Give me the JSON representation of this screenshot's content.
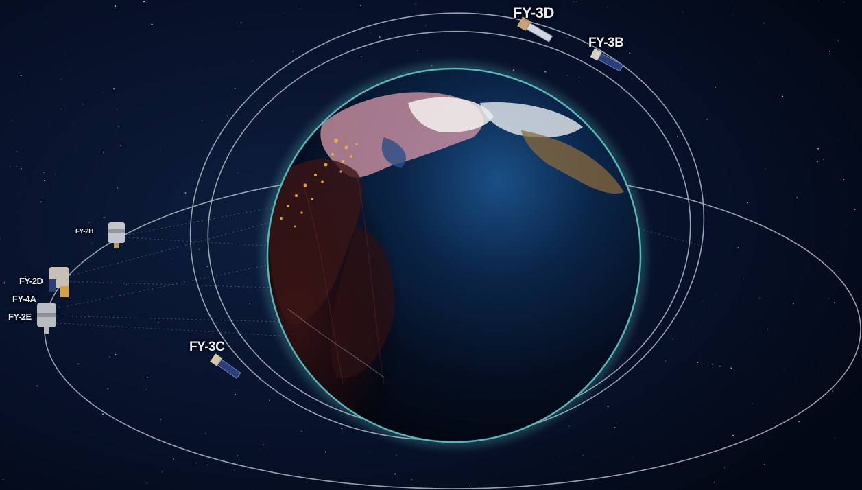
{
  "satellites": {
    "fy3d": "FY-3D",
    "fy3b": "FY-3B",
    "fy3c": "FY-3C",
    "fy2h": "FY-2H",
    "fy2d": "FY-2D",
    "fy4a": "FY-4A",
    "fy2x": "FY-2E"
  },
  "colors": {
    "space": "#050b1c",
    "orbit": "#c9d3dc",
    "atmosphere": "#5ec7c4",
    "ocean": "#06152c",
    "night_land": "#2a0d10",
    "city_lights": "#f2b53c"
  }
}
